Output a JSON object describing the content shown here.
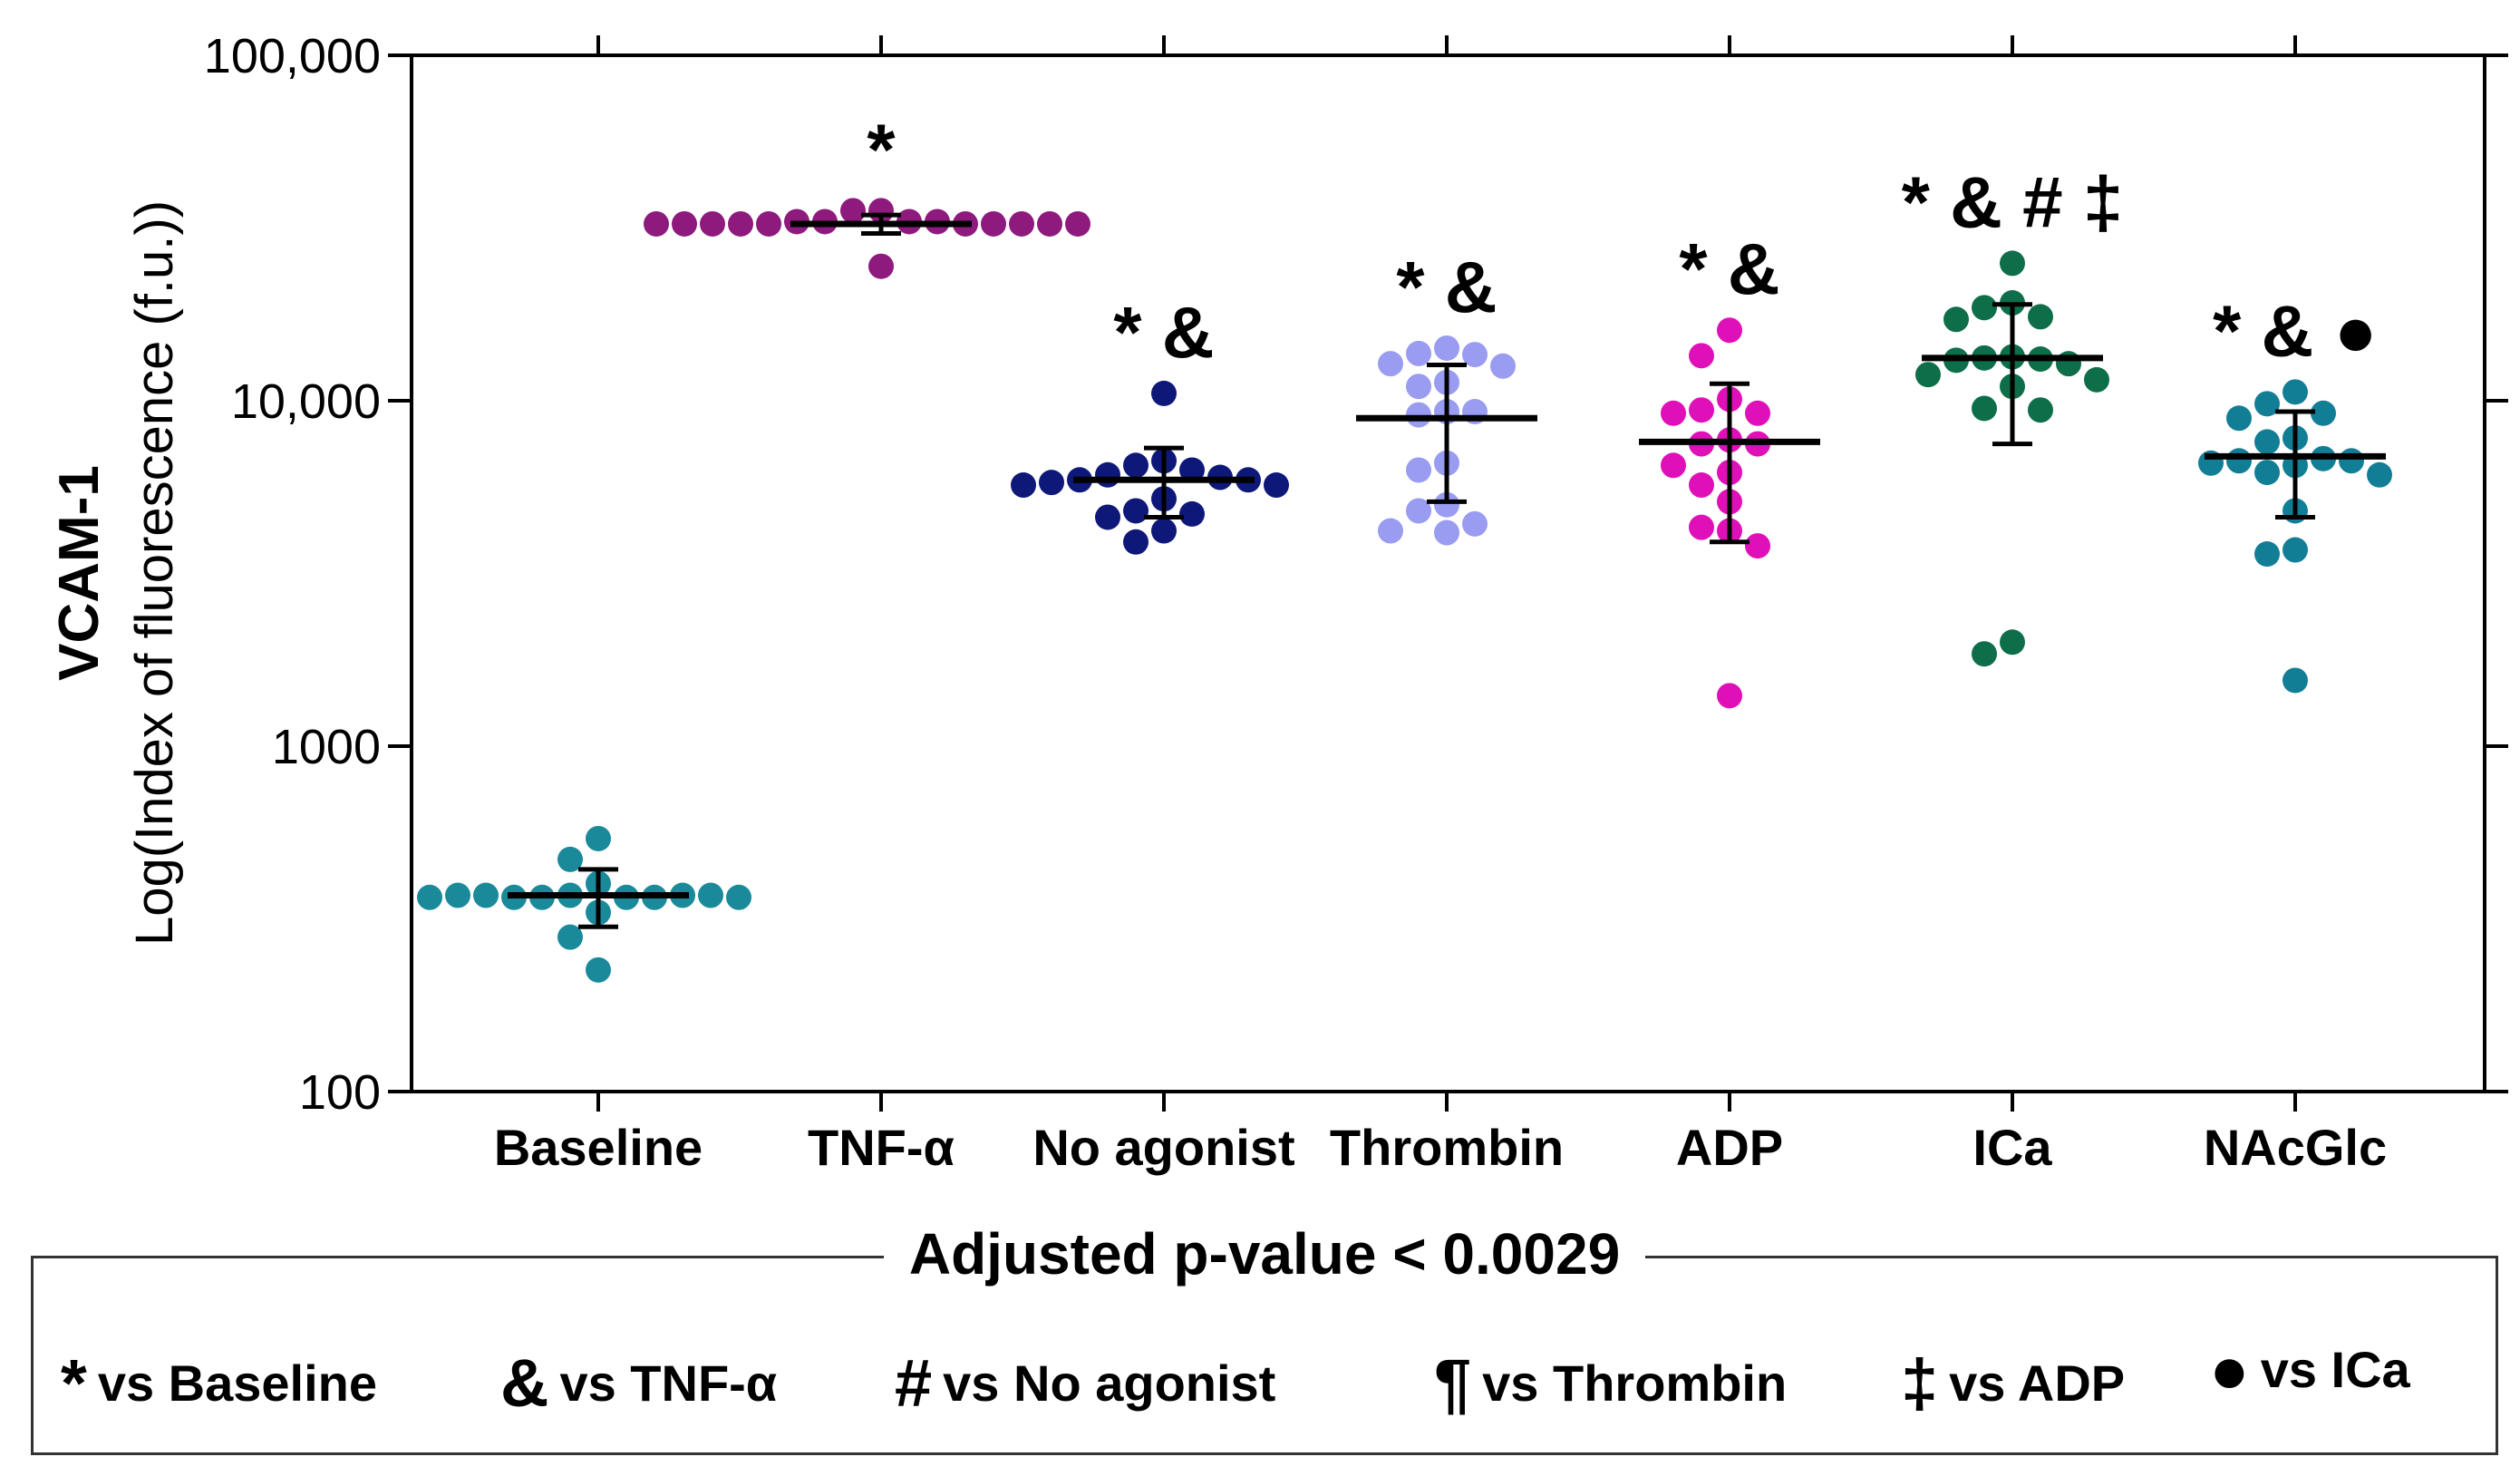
{
  "chart_data": {
    "type": "scatter",
    "yscale": "log",
    "ylabel_line1": "VCAM-1",
    "ylabel_line2": "Log(Index of fluorescence (f.u.))",
    "ylim": [
      100,
      100000
    ],
    "yticks": [
      100,
      1000,
      10000,
      100000
    ],
    "ytick_labels": [
      "100",
      "1000",
      "10,000",
      "100,000"
    ],
    "categories": [
      "Baseline",
      "TNF-α",
      "No agonist",
      "Thrombin",
      "ADP",
      "ICa",
      "NAcGlc"
    ],
    "series": [
      {
        "name": "Baseline",
        "color": "#1a8a9a",
        "mean": 370,
        "sd_low": 300,
        "sd_high": 440,
        "significance": "",
        "values": [
          540,
          470,
          400,
          370,
          365,
          365,
          365,
          365,
          370,
          370,
          370,
          370,
          365,
          365,
          330,
          280,
          225
        ]
      },
      {
        "name": "TNF-α",
        "color": "#8e1a7e",
        "mean": 32500,
        "sd_low": 30500,
        "sd_high": 34500,
        "significance": "*",
        "values": [
          35500,
          35500,
          33000,
          33000,
          33000,
          33000,
          32500,
          32500,
          32500,
          32500,
          32500,
          32500,
          32500,
          32500,
          32500,
          32500,
          24500
        ]
      },
      {
        "name": "No agonist",
        "color": "#0d1878",
        "mean": 5900,
        "sd_low": 4600,
        "sd_high": 7300,
        "significance": "* &",
        "values": [
          10500,
          6700,
          6500,
          6300,
          6100,
          6000,
          5900,
          5900,
          5800,
          5700,
          5700,
          5200,
          4800,
          4700,
          4600,
          4200,
          3900
        ]
      },
      {
        "name": "Thrombin",
        "color": "#9a9cf2",
        "mean": 8900,
        "sd_low": 5100,
        "sd_high": 12700,
        "significance": "* &",
        "values": [
          14200,
          13700,
          13600,
          12800,
          12600,
          11300,
          11000,
          9300,
          9300,
          9100,
          6600,
          6300,
          5000,
          4800,
          4400,
          4200,
          4150
        ]
      },
      {
        "name": "ADP",
        "color": "#e010b8",
        "mean": 7600,
        "sd_low": 3900,
        "sd_high": 11200,
        "significance": "* &",
        "values": [
          16000,
          13500,
          10100,
          9400,
          9200,
          9200,
          7700,
          7500,
          7500,
          6500,
          6200,
          5700,
          5100,
          4300,
          4200,
          3800,
          1400
        ]
      },
      {
        "name": "ICa",
        "color": "#0e6e4a",
        "mean": 13300,
        "sd_low": 7500,
        "sd_high": 19000,
        "significance": "* & # ‡",
        "values": [
          25000,
          19200,
          18600,
          17500,
          17200,
          13400,
          13300,
          13200,
          13100,
          12800,
          11900,
          11500,
          11000,
          9500,
          9400,
          2000,
          1850
        ]
      },
      {
        "name": "NAcGlc",
        "color": "#127e96",
        "mean": 6900,
        "sd_low": 4600,
        "sd_high": 9300,
        "significance": "* & ●",
        "values": [
          10600,
          9800,
          9200,
          8900,
          7800,
          7600,
          6800,
          6700,
          6700,
          6600,
          6500,
          6200,
          6100,
          4800,
          3700,
          3600,
          1550
        ]
      }
    ]
  },
  "legend": {
    "title": "Adjusted p-value < 0.0029",
    "items": [
      {
        "symbol": "*",
        "label": "vs Baseline"
      },
      {
        "symbol": "&",
        "label": "vs TNF-α"
      },
      {
        "symbol": "#",
        "label": "vs No agonist"
      },
      {
        "symbol": "¶",
        "label": "vs Thrombin"
      },
      {
        "symbol": "‡",
        "label": "vs ADP"
      },
      {
        "symbol": "●",
        "label": "vs ICa"
      }
    ]
  }
}
